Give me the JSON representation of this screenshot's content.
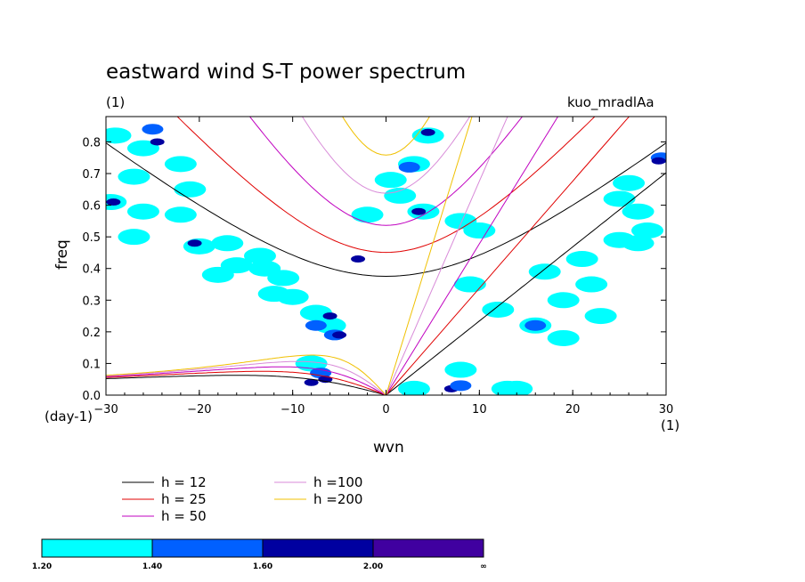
{
  "chart_data": {
    "type": "contour",
    "title": "eastward wind S-T power spectrum",
    "units_left": "(1)",
    "experiment": "kuo_mradlAa",
    "xlabel": "wvn",
    "ylabel": "freq",
    "x_unit_label": "(1)",
    "y_unit_label": "(day-1)",
    "xlim": [
      -30,
      30
    ],
    "ylim": [
      0,
      0.88
    ],
    "x_ticks": [
      -30,
      -20,
      -10,
      0,
      10,
      20,
      30
    ],
    "x_tick_labels": [
      "−30",
      "−20",
      "−10",
      "0",
      "10",
      "20",
      "30"
    ],
    "y_ticks": [
      0.0,
      0.1,
      0.2,
      0.3,
      0.4,
      0.5,
      0.6,
      0.7,
      0.8
    ],
    "y_tick_labels": [
      "0.0",
      "0.1",
      "0.2",
      "0.3",
      "0.4",
      "0.5",
      "0.6",
      "0.7",
      "0.8"
    ],
    "dispersion_curves": [
      {
        "label": "h = 12",
        "h": 12,
        "color": "#000000"
      },
      {
        "label": "h = 25",
        "h": 25,
        "color": "#e00000"
      },
      {
        "label": "h = 50",
        "h": 50,
        "color": "#c000c0"
      },
      {
        "label": "h =100",
        "h": 100,
        "color": "#d88ad8"
      },
      {
        "label": "h =200",
        "h": 200,
        "color": "#f0c000"
      }
    ],
    "colorbar": {
      "levels": [
        "1.20",
        "1.40",
        "1.60",
        "2.00",
        "∞"
      ],
      "colors": [
        "#00ffff",
        "#0060ff",
        "#0000a0",
        "#4000a0"
      ]
    },
    "shaded_regions": [
      {
        "x": -29,
        "y": 0.82,
        "level": 0
      },
      {
        "x": -26,
        "y": 0.78,
        "level": 0
      },
      {
        "x": -25,
        "y": 0.84,
        "level": 1
      },
      {
        "x": -24.5,
        "y": 0.8,
        "level": 2
      },
      {
        "x": -29.5,
        "y": 0.61,
        "level": 0
      },
      {
        "x": -29.2,
        "y": 0.61,
        "level": 2
      },
      {
        "x": -27,
        "y": 0.69,
        "level": 0
      },
      {
        "x": -22,
        "y": 0.73,
        "level": 0
      },
      {
        "x": -22,
        "y": 0.57,
        "level": 0
      },
      {
        "x": -26,
        "y": 0.58,
        "level": 0
      },
      {
        "x": -20,
        "y": 0.47,
        "level": 0
      },
      {
        "x": -17,
        "y": 0.48,
        "level": 0
      },
      {
        "x": -20.5,
        "y": 0.48,
        "level": 2
      },
      {
        "x": -27,
        "y": 0.5,
        "level": 0
      },
      {
        "x": -16,
        "y": 0.41,
        "level": 0
      },
      {
        "x": -13,
        "y": 0.4,
        "level": 0
      },
      {
        "x": -12,
        "y": 0.32,
        "level": 0
      },
      {
        "x": -10,
        "y": 0.31,
        "level": 0
      },
      {
        "x": -7.5,
        "y": 0.26,
        "level": 0
      },
      {
        "x": -6,
        "y": 0.22,
        "level": 0
      },
      {
        "x": -5.5,
        "y": 0.19,
        "level": 1
      },
      {
        "x": -5,
        "y": 0.19,
        "level": 2
      },
      {
        "x": -7.5,
        "y": 0.22,
        "level": 1
      },
      {
        "x": -6,
        "y": 0.25,
        "level": 2
      },
      {
        "x": -8,
        "y": 0.1,
        "level": 0
      },
      {
        "x": -7,
        "y": 0.07,
        "level": 1
      },
      {
        "x": -6.5,
        "y": 0.05,
        "level": 2
      },
      {
        "x": -8,
        "y": 0.04,
        "level": 2
      },
      {
        "x": -3,
        "y": 0.43,
        "level": 2
      },
      {
        "x": -2,
        "y": 0.57,
        "level": 0
      },
      {
        "x": 0.5,
        "y": 0.68,
        "level": 0
      },
      {
        "x": 1.5,
        "y": 0.63,
        "level": 0
      },
      {
        "x": 3,
        "y": 0.73,
        "level": 0
      },
      {
        "x": 2.5,
        "y": 0.72,
        "level": 1
      },
      {
        "x": 4.5,
        "y": 0.82,
        "level": 0
      },
      {
        "x": 4.5,
        "y": 0.83,
        "level": 2
      },
      {
        "x": 8,
        "y": 0.55,
        "level": 0
      },
      {
        "x": 10,
        "y": 0.52,
        "level": 0
      },
      {
        "x": 4,
        "y": 0.58,
        "level": 0
      },
      {
        "x": 3.5,
        "y": 0.58,
        "level": 2
      },
      {
        "x": 8,
        "y": 0.08,
        "level": 0
      },
      {
        "x": 7,
        "y": 0.02,
        "level": 2
      },
      {
        "x": 8,
        "y": 0.03,
        "level": 1
      },
      {
        "x": 14,
        "y": 0.02,
        "level": 0
      },
      {
        "x": 16,
        "y": 0.22,
        "level": 0
      },
      {
        "x": 16,
        "y": 0.22,
        "level": 1
      },
      {
        "x": 17,
        "y": 0.39,
        "level": 0
      },
      {
        "x": 19,
        "y": 0.3,
        "level": 0
      },
      {
        "x": 21,
        "y": 0.43,
        "level": 0
      },
      {
        "x": 22,
        "y": 0.35,
        "level": 0
      },
      {
        "x": 25,
        "y": 0.49,
        "level": 0
      },
      {
        "x": 27,
        "y": 0.58,
        "level": 0
      },
      {
        "x": 28,
        "y": 0.52,
        "level": 0
      },
      {
        "x": 29.5,
        "y": 0.75,
        "level": 1
      },
      {
        "x": 29.2,
        "y": 0.74,
        "level": 2
      },
      {
        "x": 26,
        "y": 0.67,
        "level": 0
      },
      {
        "x": 25,
        "y": 0.62,
        "level": 0
      },
      {
        "x": 27,
        "y": 0.48,
        "level": 0
      },
      {
        "x": 23,
        "y": 0.25,
        "level": 0
      },
      {
        "x": 19,
        "y": 0.18,
        "level": 0
      },
      {
        "x": -21,
        "y": 0.65,
        "level": 0
      },
      {
        "x": -13.5,
        "y": 0.44,
        "level": 0
      },
      {
        "x": -18,
        "y": 0.38,
        "level": 0
      },
      {
        "x": -11,
        "y": 0.37,
        "level": 0
      },
      {
        "x": 9,
        "y": 0.35,
        "level": 0
      },
      {
        "x": 12,
        "y": 0.27,
        "level": 0
      },
      {
        "x": 13,
        "y": 0.02,
        "level": 0
      },
      {
        "x": 3,
        "y": 0.02,
        "level": 0
      }
    ]
  }
}
